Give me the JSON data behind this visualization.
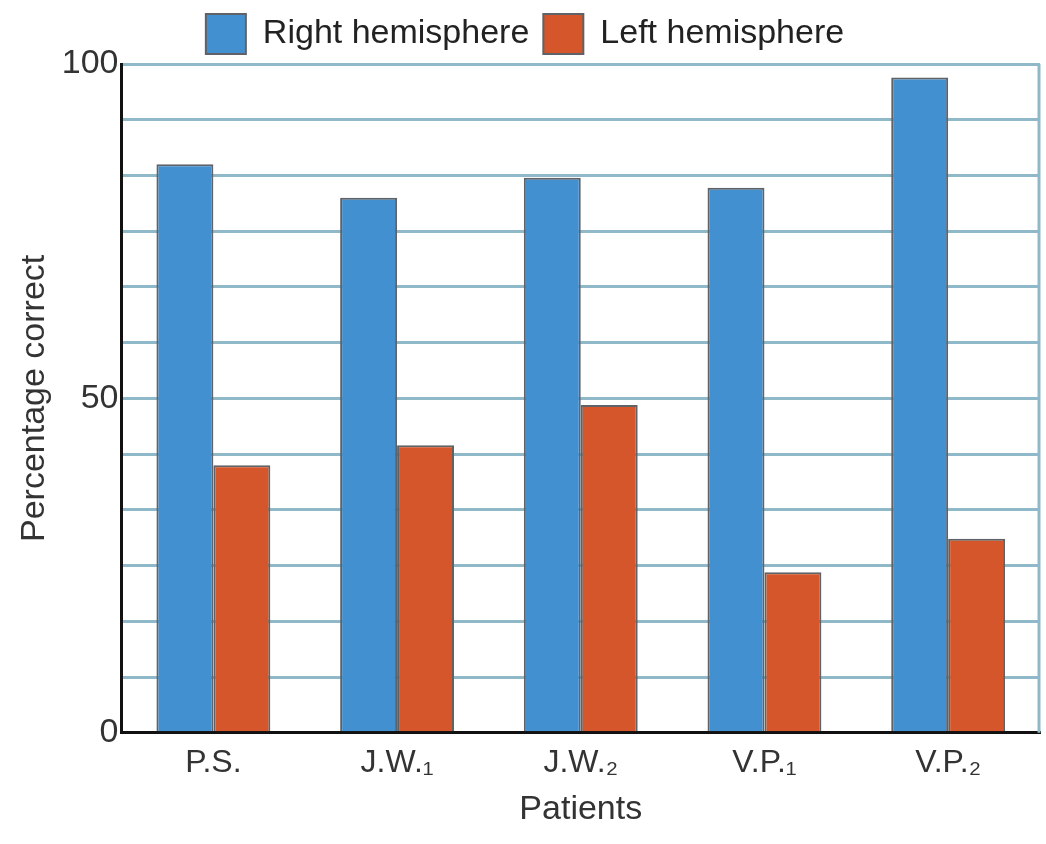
{
  "chart_data": {
    "type": "bar",
    "xlabel": "Patients",
    "ylabel": "Percentage correct",
    "categories": [
      "P.S.",
      "J.W.₁",
      "J.W.₂",
      "V.P.₁",
      "V.P.₂"
    ],
    "series": [
      {
        "name": "Right hemisphere",
        "color": "#4390d0",
        "values": [
          85,
          80,
          83,
          81.5,
          98
        ]
      },
      {
        "name": "Left hemisphere",
        "color": "#d5562a",
        "values": [
          40,
          43,
          49,
          24,
          29
        ]
      }
    ],
    "ylim": [
      0,
      100
    ],
    "yticks": [
      0,
      {
        "value": 8.33,
        "label": null
      },
      {
        "value": 16.67,
        "label": null
      },
      {
        "value": 25,
        "label": null
      },
      {
        "value": 33.33,
        "label": null
      },
      {
        "value": 41.67,
        "label": null
      },
      50,
      {
        "value": 58.33,
        "label": null
      },
      {
        "value": 66.67,
        "label": null
      },
      {
        "value": 75,
        "label": null
      },
      {
        "value": 83.33,
        "label": null
      },
      {
        "value": 91.67,
        "label": null
      },
      100
    ],
    "grid": "y",
    "legend": "top"
  }
}
